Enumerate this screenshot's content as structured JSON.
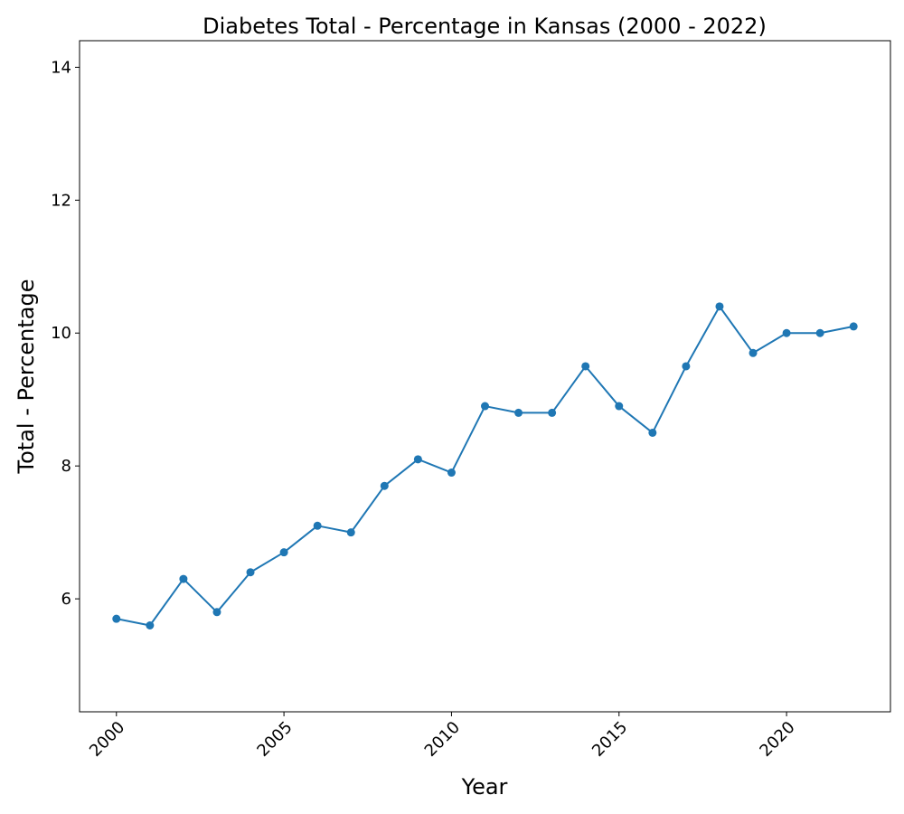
{
  "chart_data": {
    "type": "line",
    "title": "Diabetes Total - Percentage in Kansas (2000 - 2022)",
    "xlabel": "Year",
    "ylabel": "Total - Percentage",
    "xlim": [
      1998.9,
      2023.1
    ],
    "ylim": [
      4.3,
      14.4
    ],
    "xticks": [
      2000,
      2005,
      2010,
      2015,
      2020
    ],
    "yticks": [
      6,
      8,
      10,
      12,
      14
    ],
    "grid": false,
    "series_color": "#1f77b4",
    "x": [
      2000,
      2001,
      2002,
      2003,
      2004,
      2005,
      2006,
      2007,
      2008,
      2009,
      2010,
      2011,
      2012,
      2013,
      2014,
      2015,
      2016,
      2017,
      2018,
      2019,
      2020,
      2021,
      2022
    ],
    "y": [
      5.7,
      5.6,
      6.3,
      5.8,
      6.4,
      6.7,
      7.1,
      7.0,
      7.7,
      8.1,
      7.9,
      8.9,
      8.8,
      8.8,
      9.5,
      8.9,
      8.5,
      9.5,
      10.4,
      9.7,
      10.0,
      10.0,
      10.1
    ]
  }
}
